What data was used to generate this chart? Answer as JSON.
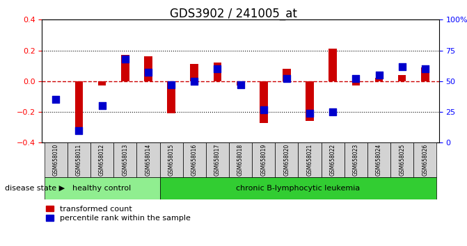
{
  "title": "GDS3902 / 241005_at",
  "samples": [
    "GSM658010",
    "GSM658011",
    "GSM658012",
    "GSM658013",
    "GSM658014",
    "GSM658015",
    "GSM658016",
    "GSM658017",
    "GSM658018",
    "GSM658019",
    "GSM658020",
    "GSM658021",
    "GSM658022",
    "GSM658023",
    "GSM658024",
    "GSM658025",
    "GSM658026"
  ],
  "red_values": [
    0.0,
    -0.35,
    -0.03,
    0.17,
    0.16,
    -0.21,
    0.11,
    0.12,
    -0.03,
    -0.27,
    0.08,
    -0.26,
    0.21,
    -0.03,
    0.02,
    0.04,
    0.09
  ],
  "blue_values": [
    35,
    10,
    30,
    68,
    57,
    47,
    50,
    60,
    47,
    27,
    52,
    24,
    25,
    52,
    55,
    62,
    60
  ],
  "healthy_count": 5,
  "disease_label_healthy": "healthy control",
  "disease_label_leukemia": "chronic B-lymphocytic leukemia",
  "disease_state_label": "disease state",
  "legend_red": "transformed count",
  "legend_blue": "percentile rank within the sample",
  "ylim_left": [
    -0.4,
    0.4
  ],
  "ylim_right": [
    0,
    100
  ],
  "yticks_left": [
    -0.4,
    -0.2,
    0.0,
    0.2,
    0.4
  ],
  "yticks_right": [
    0,
    25,
    50,
    75,
    100
  ],
  "bar_color": "#cc0000",
  "dot_color": "#0000cc",
  "zero_line_color": "#cc0000",
  "grid_color": "#000000",
  "bg_color": "#ffffff",
  "healthy_bg": "#90ee90",
  "leukemia_bg": "#32cd32",
  "tick_label_bg": "#d3d3d3"
}
